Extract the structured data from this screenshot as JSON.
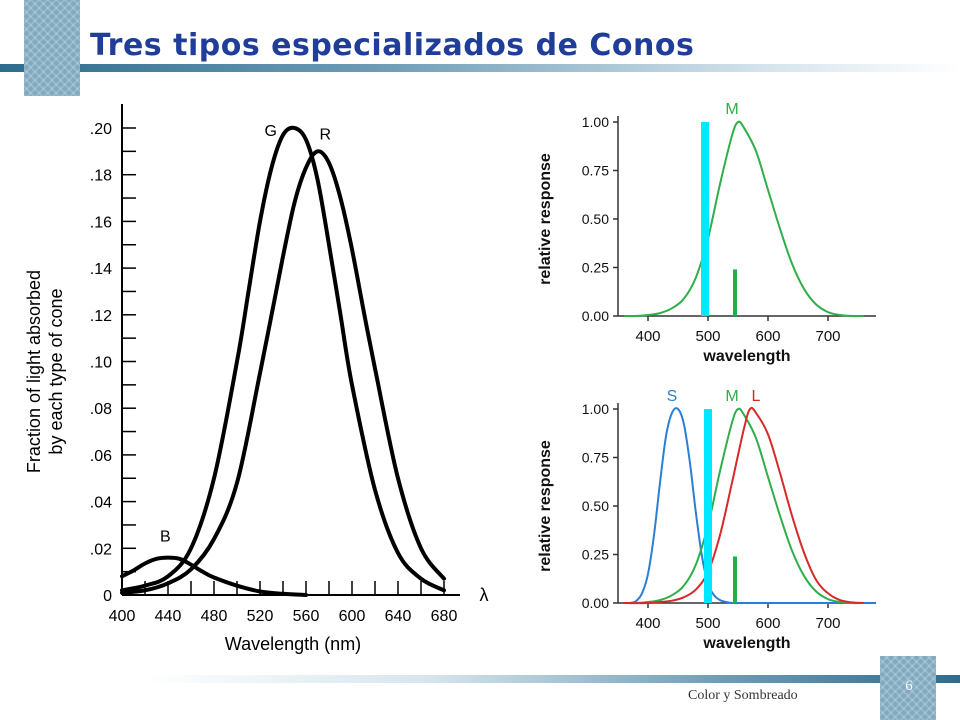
{
  "slide": {
    "title": "Tres tipos especializados de Conos",
    "footer": "Color y Sombreado",
    "page_number": "6",
    "colors": {
      "title": "#1f3d99",
      "accent_bar": "#2e6c8e",
      "deco_square": "#7fa9bf"
    }
  },
  "chart_data": [
    {
      "type": "line",
      "ylabel": [
        "Fraction of light absorbed",
        "by each type of cone"
      ],
      "xlabel": "Wavelength (nm)",
      "x_axis_symbol": "λ",
      "xlim": [
        400,
        680
      ],
      "ylim": [
        0,
        0.2
      ],
      "xticks": [
        400,
        440,
        480,
        520,
        560,
        600,
        640,
        680
      ],
      "xtick_labels": [
        "400",
        "440",
        "480",
        "520",
        "560",
        "600",
        "640",
        "680"
      ],
      "yticks": [
        0,
        0.02,
        0.04,
        0.06,
        0.08,
        0.1,
        0.12,
        0.14,
        0.16,
        0.18,
        0.2
      ],
      "ytick_labels": [
        "0",
        ".02",
        ".04",
        ".06",
        ".08",
        ".10",
        ".12",
        ".14",
        ".16",
        ".18",
        ".20"
      ],
      "grid": false,
      "series": [
        {
          "name": "B",
          "color": "#000000",
          "x": [
            400,
            410,
            420,
            430,
            440,
            450,
            460,
            470,
            480,
            500,
            520,
            540,
            560
          ],
          "y": [
            0.008,
            0.0105,
            0.0135,
            0.0155,
            0.016,
            0.0155,
            0.013,
            0.01,
            0.0075,
            0.004,
            0.0015,
            0.0005,
            0.0
          ]
        },
        {
          "name": "G",
          "color": "#000000",
          "x": [
            400,
            420,
            440,
            460,
            480,
            500,
            510,
            520,
            530,
            540,
            550,
            560,
            570,
            580,
            590,
            600,
            620,
            640,
            660,
            680
          ],
          "y": [
            0.002,
            0.004,
            0.008,
            0.02,
            0.05,
            0.1,
            0.13,
            0.16,
            0.183,
            0.197,
            0.2,
            0.195,
            0.178,
            0.15,
            0.12,
            0.09,
            0.045,
            0.018,
            0.007,
            0.002
          ]
        },
        {
          "name": "R",
          "color": "#000000",
          "x": [
            400,
            420,
            440,
            460,
            480,
            500,
            520,
            540,
            550,
            560,
            570,
            580,
            590,
            600,
            610,
            620,
            640,
            660,
            680
          ],
          "y": [
            0.001,
            0.002,
            0.005,
            0.011,
            0.024,
            0.048,
            0.095,
            0.145,
            0.168,
            0.183,
            0.19,
            0.185,
            0.17,
            0.148,
            0.122,
            0.097,
            0.05,
            0.02,
            0.007
          ]
        }
      ]
    },
    {
      "type": "line",
      "ylabel": "relative response",
      "xlabel": "wavelength",
      "xlim": [
        350,
        780
      ],
      "ylim": [
        0,
        1.0
      ],
      "xticks": [
        400,
        500,
        600,
        700
      ],
      "xtick_labels": [
        "400",
        "500",
        "600",
        "700"
      ],
      "yticks": [
        0,
        0.25,
        0.5,
        0.75,
        1.0
      ],
      "ytick_labels": [
        "0.00",
        "0.25",
        "0.50",
        "0.75",
        "1.00"
      ],
      "grid": false,
      "series": [
        {
          "name": "M",
          "color": "#2fae4a",
          "x": [
            360,
            380,
            400,
            420,
            440,
            460,
            480,
            500,
            520,
            540,
            550,
            560,
            580,
            600,
            620,
            640,
            660,
            680,
            700,
            720,
            740,
            760
          ],
          "y": [
            0.0,
            0.0,
            0.005,
            0.015,
            0.04,
            0.09,
            0.2,
            0.4,
            0.68,
            0.93,
            1.0,
            0.97,
            0.85,
            0.65,
            0.45,
            0.27,
            0.14,
            0.06,
            0.02,
            0.005,
            0.0,
            0.0
          ]
        }
      ],
      "markers": [
        {
          "x": 495,
          "y0": 0,
          "y1": 1.0,
          "color": "#00e8ff",
          "width": 8
        },
        {
          "x": 545,
          "y0": 0,
          "y1": 0.24,
          "color": "#1db34a",
          "width": 4
        }
      ]
    },
    {
      "type": "line",
      "ylabel": "relative response",
      "xlabel": "wavelength",
      "xlim": [
        350,
        780
      ],
      "ylim": [
        0,
        1.0
      ],
      "xticks": [
        400,
        500,
        600,
        700
      ],
      "xtick_labels": [
        "400",
        "500",
        "600",
        "700"
      ],
      "yticks": [
        0,
        0.25,
        0.5,
        0.75,
        1.0
      ],
      "ytick_labels": [
        "0.00",
        "0.25",
        "0.50",
        "0.75",
        "1.00"
      ],
      "grid": false,
      "series": [
        {
          "name": "S",
          "color": "#2a7fd4",
          "x": [
            370,
            380,
            390,
            400,
            410,
            420,
            430,
            440,
            450,
            460,
            470,
            480,
            490,
            500,
            510,
            520,
            530,
            540,
            560,
            580,
            600,
            700,
            780
          ],
          "y": [
            0.0,
            0.01,
            0.05,
            0.15,
            0.35,
            0.62,
            0.86,
            0.98,
            1.0,
            0.92,
            0.72,
            0.46,
            0.24,
            0.1,
            0.04,
            0.015,
            0.005,
            0.0,
            0.0,
            0.0,
            0.0,
            0.0,
            0.0
          ]
        },
        {
          "name": "M",
          "color": "#2fae4a",
          "x": [
            360,
            380,
            400,
            420,
            440,
            460,
            480,
            500,
            520,
            540,
            550,
            560,
            580,
            600,
            620,
            640,
            660,
            680,
            700,
            720,
            740,
            760
          ],
          "y": [
            0.0,
            0.0,
            0.005,
            0.015,
            0.04,
            0.09,
            0.2,
            0.4,
            0.68,
            0.93,
            1.0,
            0.97,
            0.85,
            0.65,
            0.45,
            0.27,
            0.14,
            0.06,
            0.02,
            0.005,
            0.0,
            0.0
          ]
        },
        {
          "name": "L",
          "color": "#d62a2a",
          "x": [
            360,
            400,
            420,
            440,
            460,
            480,
            500,
            520,
            540,
            560,
            570,
            580,
            600,
            620,
            640,
            660,
            680,
            700,
            720,
            740,
            760
          ],
          "y": [
            0.0,
            0.0,
            0.005,
            0.012,
            0.03,
            0.07,
            0.16,
            0.35,
            0.62,
            0.9,
            1.0,
            0.98,
            0.87,
            0.67,
            0.45,
            0.26,
            0.12,
            0.05,
            0.015,
            0.003,
            0.0
          ]
        }
      ],
      "markers": [
        {
          "x": 500,
          "y0": 0,
          "y1": 1.0,
          "color": "#00e8ff",
          "width": 8
        },
        {
          "x": 545,
          "y0": 0,
          "y1": 0.24,
          "color": "#1db34a",
          "width": 4
        }
      ]
    }
  ]
}
